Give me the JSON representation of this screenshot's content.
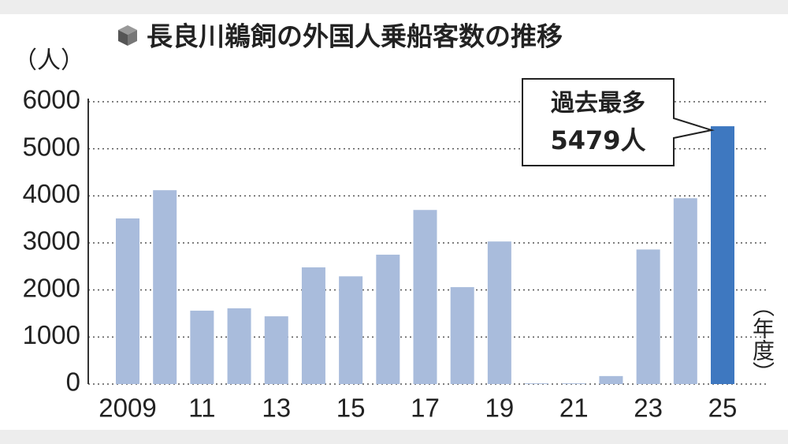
{
  "chart_data": {
    "type": "bar",
    "title": "長良川鵜飼の外国人乗船客数の推移",
    "y_axis_label": "（人）",
    "x_axis_label": "（年度）",
    "annotation": [
      "過去最多",
      "5479人"
    ],
    "categories": [
      "2009",
      null,
      "11",
      null,
      "13",
      null,
      "15",
      null,
      "17",
      null,
      "19",
      null,
      "21",
      null,
      "23",
      null,
      "25"
    ],
    "values": [
      3520,
      4120,
      1560,
      1610,
      1440,
      2480,
      2290,
      2750,
      3700,
      2060,
      3030,
      15,
      15,
      170,
      2860,
      3950,
      5479
    ],
    "colors": [
      "#a9bcdc",
      "#a9bcdc",
      "#a9bcdc",
      "#a9bcdc",
      "#a9bcdc",
      "#a9bcdc",
      "#a9bcdc",
      "#a9bcdc",
      "#a9bcdc",
      "#a9bcdc",
      "#a9bcdc",
      "#a9bcdc",
      "#a9bcdc",
      "#a9bcdc",
      "#a9bcdc",
      "#a9bcdc",
      "#3e78c0"
    ],
    "ylim": [
      0,
      6000
    ],
    "yticks": [
      0,
      1000,
      2000,
      3000,
      4000,
      5000,
      6000
    ],
    "grid": true
  }
}
